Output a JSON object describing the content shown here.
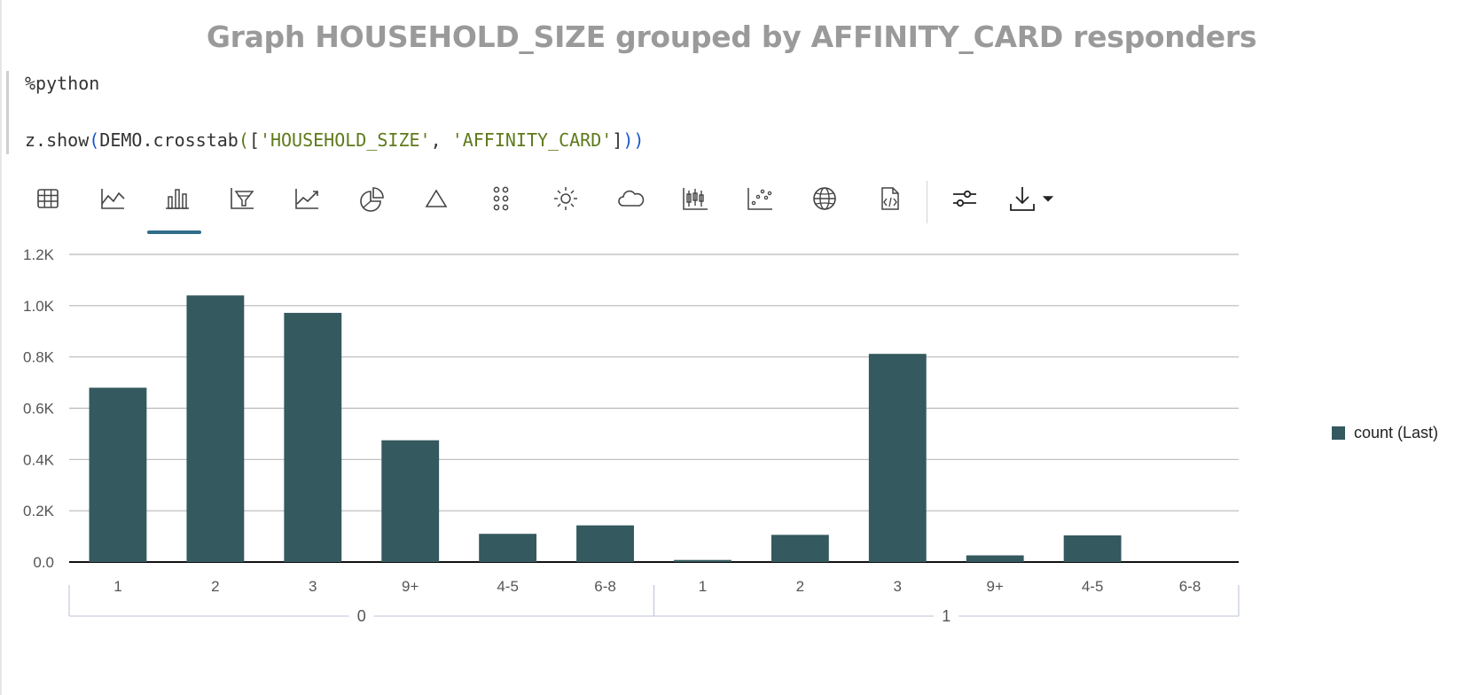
{
  "title": "Graph HOUSEHOLD_SIZE grouped by AFFINITY_CARD responders",
  "code": {
    "magic": "%python",
    "call_prefix": "z.show",
    "open_paren": "(",
    "object": "DEMO.crosstab",
    "inner_open": "(",
    "bracket_open": "[",
    "arg1": "'HOUSEHOLD_SIZE'",
    "comma": ", ",
    "arg2": "'AFFINITY_CARD'",
    "bracket_close": "]",
    "closing_parens": "))"
  },
  "toolbar": {
    "buttons": [
      {
        "icon": "table-icon"
      },
      {
        "icon": "area-chart-icon"
      },
      {
        "icon": "bar-chart-icon",
        "active": true
      },
      {
        "icon": "funnel-chart-icon"
      },
      {
        "icon": "line-chart-icon"
      },
      {
        "icon": "pie-chart-icon"
      },
      {
        "icon": "pyramid-chart-icon"
      },
      {
        "icon": "bubble-dots-icon"
      },
      {
        "icon": "sunburst-icon"
      },
      {
        "icon": "word-cloud-icon"
      },
      {
        "icon": "boxplot-icon"
      },
      {
        "icon": "scatter-plot-icon"
      },
      {
        "icon": "map-globe-icon"
      },
      {
        "icon": "custom-code-icon"
      },
      {
        "icon": "settings-sliders-icon"
      },
      {
        "icon": "download-icon"
      },
      {
        "icon": "dropdown-caret-icon"
      }
    ],
    "accent_color": "#2f6d8a"
  },
  "chart_data": {
    "type": "bar",
    "title": "",
    "xlabel": "",
    "ylabel": "",
    "ylim": [
      0,
      1200
    ],
    "y_ticks": [
      "0.0",
      "0.2K",
      "0.4K",
      "0.6K",
      "0.8K",
      "1.0K",
      "1.2K"
    ],
    "y_tick_values": [
      0,
      200,
      400,
      600,
      800,
      1000,
      1200
    ],
    "groups": [
      "0",
      "1"
    ],
    "categories": [
      "1",
      "2",
      "3",
      "9+",
      "4-5",
      "6-8",
      "1",
      "2",
      "3",
      "9+",
      "4-5",
      "6-8"
    ],
    "series": [
      {
        "name": "count (Last)",
        "color": "#34595f",
        "values": [
          680,
          1040,
          972,
          475,
          110,
          143,
          8,
          106,
          812,
          26,
          104,
          0
        ]
      }
    ],
    "grid": true,
    "legend_position": "right"
  }
}
